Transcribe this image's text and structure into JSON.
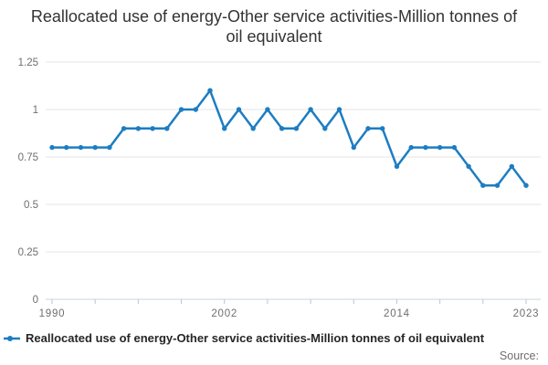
{
  "title": "Reallocated use of energy-Other service activities-Million tonnes of oil equivalent",
  "legend": {
    "label": "Reallocated use of energy-Other service activities-Million tonnes of oil equivalent",
    "marker_icon": "line-dot-marker"
  },
  "source_label": "Source:",
  "colors": {
    "line": "#1d7dc2",
    "title_text": "#333333",
    "axis_text": "#6e6e6e",
    "gridline": "#e6e6e6",
    "axis_line": "#c8d4dc",
    "tick": "#b4c8d8",
    "legend_text": "#262626",
    "background": "#ffffff"
  },
  "chart_data": {
    "type": "line",
    "title": "Reallocated use of energy-Other service activities-Million tonnes of oil equivalent",
    "xlabel": "",
    "ylabel": "",
    "xlim": [
      1990,
      2023
    ],
    "ylim": [
      0,
      1.25
    ],
    "grid": "horizontal",
    "legend_position": "bottom-left",
    "marker": "circle",
    "x": [
      1990,
      1991,
      1992,
      1993,
      1994,
      1995,
      1996,
      1997,
      1998,
      1999,
      2000,
      2001,
      2002,
      2003,
      2004,
      2005,
      2006,
      2007,
      2008,
      2009,
      2010,
      2011,
      2012,
      2013,
      2014,
      2015,
      2016,
      2017,
      2018,
      2019,
      2020,
      2021,
      2022,
      2023
    ],
    "values": [
      0.8,
      0.8,
      0.8,
      0.8,
      0.8,
      0.9,
      0.9,
      0.9,
      0.9,
      1.0,
      1.0,
      1.1,
      0.9,
      1.0,
      0.9,
      1.0,
      0.9,
      0.9,
      1.0,
      0.9,
      1.0,
      0.8,
      0.9,
      0.9,
      0.7,
      0.8,
      0.8,
      0.8,
      0.8,
      0.7,
      0.6,
      0.6,
      0.7,
      0.6
    ],
    "yticks": {
      "values": [
        0,
        0.25,
        0.5,
        0.75,
        1,
        1.25
      ],
      "labels": [
        "0",
        "0.25",
        "0.5",
        "0.75",
        "1",
        "1.25"
      ]
    },
    "xticks": {
      "values": [
        1990,
        1993,
        1996,
        1999,
        2002,
        2005,
        2008,
        2011,
        2014,
        2017,
        2020,
        2023
      ],
      "labeled": [
        1990,
        2002,
        2014,
        2023
      ]
    }
  }
}
